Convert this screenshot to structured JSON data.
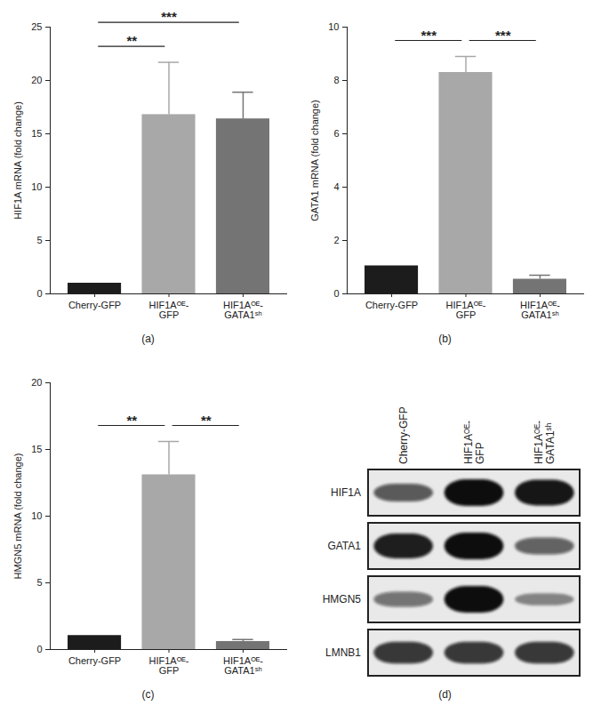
{
  "chart_data": [
    {
      "type": "bar",
      "caption": "(a)",
      "ylabel": "HIF1A mRNA (fold change)",
      "categories": [
        "Cherry-GFP",
        "HIF1Aᴼᴱ-GFP",
        "HIF1Aᴼᴱ-GATA1ˢʰ"
      ],
      "values": [
        1.0,
        16.8,
        16.4
      ],
      "errors": [
        0,
        4.9,
        2.5
      ],
      "colors": [
        "#1c1c1c",
        "#a8a8a8",
        "#747474"
      ],
      "ylim": [
        0,
        25
      ],
      "yticks": [
        0,
        5,
        10,
        15,
        20,
        25
      ],
      "significance": [
        {
          "between": [
            0,
            1
          ],
          "text": "**"
        },
        {
          "between": [
            0,
            2
          ],
          "text": "***"
        }
      ]
    },
    {
      "type": "bar",
      "caption": "(b)",
      "ylabel": "GATA1 mRNA (fold change)",
      "categories": [
        "Cherry-GFP",
        "HIF1Aᴼᴱ-GFP",
        "HIF1Aᴼᴱ-GATA1ˢʰ"
      ],
      "values": [
        1.05,
        8.3,
        0.55
      ],
      "errors": [
        0,
        0.6,
        0.15
      ],
      "colors": [
        "#1c1c1c",
        "#a8a8a8",
        "#747474"
      ],
      "ylim": [
        0,
        10
      ],
      "yticks": [
        0,
        2,
        4,
        6,
        8,
        10
      ],
      "significance": [
        {
          "between": [
            0,
            1
          ],
          "text": "***"
        },
        {
          "between": [
            1,
            2
          ],
          "text": "***"
        }
      ]
    },
    {
      "type": "bar",
      "caption": "(c)",
      "ylabel": "HMGN5 mRNA (fold change)",
      "categories": [
        "Cherry-GFP",
        "HIF1Aᴼᴱ-GFP",
        "HIF1Aᴼᴱ-GATA1ˢʰ"
      ],
      "values": [
        1.05,
        13.1,
        0.6
      ],
      "errors": [
        0,
        2.5,
        0.15
      ],
      "colors": [
        "#1c1c1c",
        "#a8a8a8",
        "#747474"
      ],
      "ylim": [
        0,
        20
      ],
      "yticks": [
        0,
        5,
        10,
        15,
        20
      ],
      "significance": [
        {
          "between": [
            0,
            1
          ],
          "text": "**"
        },
        {
          "between": [
            1,
            2
          ],
          "text": "**"
        }
      ]
    }
  ],
  "blot": {
    "caption": "(d)",
    "lanes": [
      "Cherry-GFP",
      "HIF1Aᴼᴱ-GFP",
      "HIF1Aᴼᴱ-GATA1ˢʰ"
    ],
    "rows": [
      {
        "label": "HIF1A",
        "intensity": [
          0.55,
          1.0,
          0.95
        ]
      },
      {
        "label": "GATA1",
        "intensity": [
          0.9,
          1.0,
          0.5
        ]
      },
      {
        "label": "HMGN5",
        "intensity": [
          0.4,
          1.0,
          0.25
        ]
      },
      {
        "label": "LMNB1",
        "intensity": [
          0.75,
          0.75,
          0.75
        ]
      }
    ]
  }
}
